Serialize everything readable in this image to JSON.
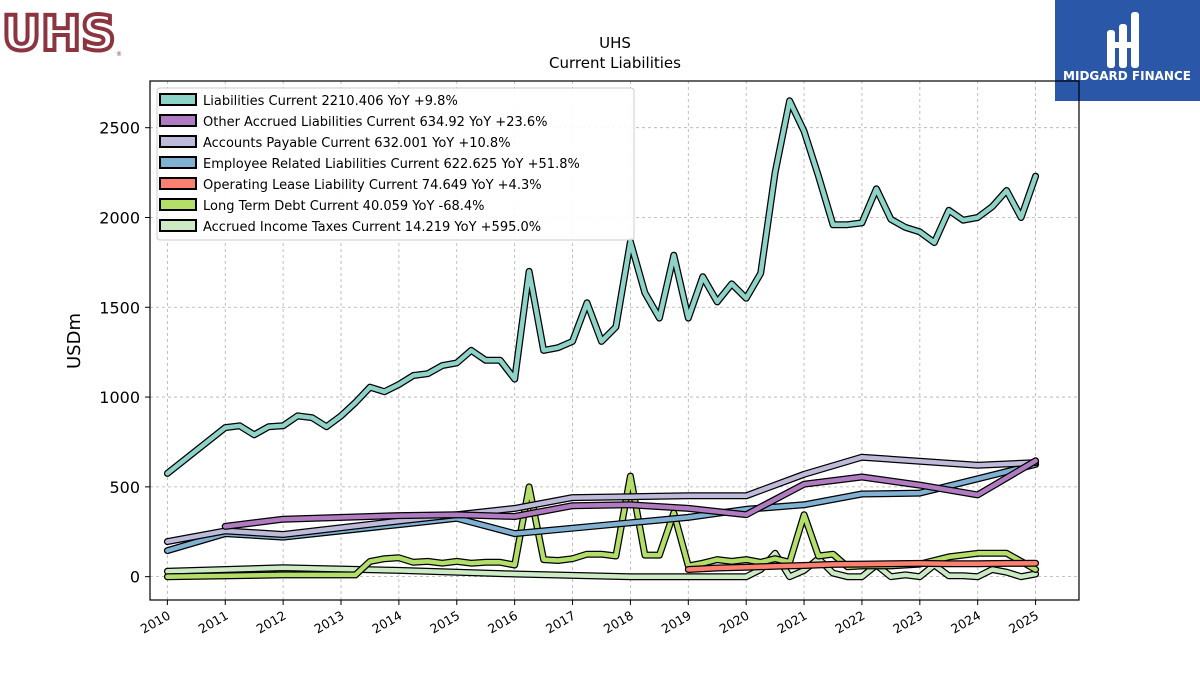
{
  "brand": {
    "left_logo_text": "UHS",
    "right_logo_text": "MIDGARD FINANCE",
    "right_logo_bg": "#2a57a8",
    "left_logo_color": "#8c3440"
  },
  "chart_data": {
    "type": "line",
    "title": "UHS",
    "subtitle": "Current  Liabilities",
    "ylabel": "USDm",
    "xlabel": "",
    "xlim": [
      2009.7,
      2025.75
    ],
    "ylim": [
      -130,
      2760
    ],
    "x_ticks": [
      2010,
      2011,
      2012,
      2013,
      2014,
      2015,
      2016,
      2017,
      2018,
      2019,
      2020,
      2021,
      2022,
      2023,
      2024,
      2025
    ],
    "y_ticks": [
      0,
      500,
      1000,
      1500,
      2000,
      2500
    ],
    "grid": true,
    "legend_position": "top-left",
    "series": [
      {
        "name": "Liabilities Current",
        "legend": "Liabilities Current  2210.406 YoY +9.8%",
        "color": "#8dd3c7",
        "x": [
          2010.0,
          2011.0,
          2011.25,
          2011.5,
          2011.75,
          2012.0,
          2012.25,
          2012.5,
          2012.75,
          2013.0,
          2013.25,
          2013.5,
          2013.75,
          2014.0,
          2014.25,
          2014.5,
          2014.75,
          2015.0,
          2015.25,
          2015.5,
          2015.75,
          2016.0,
          2016.25,
          2016.5,
          2016.75,
          2017.0,
          2017.25,
          2017.5,
          2017.75,
          2018.0,
          2018.25,
          2018.5,
          2018.75,
          2019.0,
          2019.25,
          2019.5,
          2019.75,
          2020.0,
          2020.25,
          2020.5,
          2020.75,
          2021.0,
          2021.25,
          2021.5,
          2021.75,
          2022.0,
          2022.25,
          2022.5,
          2022.75,
          2023.0,
          2023.25,
          2023.5,
          2023.75,
          2024.0,
          2024.25,
          2024.5,
          2024.75,
          2025.0
        ],
        "values": [
          575,
          830,
          840,
          790,
          835,
          840,
          895,
          885,
          835,
          895,
          970,
          1055,
          1030,
          1070,
          1120,
          1130,
          1175,
          1190,
          1260,
          1205,
          1205,
          1100,
          1700,
          1260,
          1275,
          1310,
          1525,
          1310,
          1390,
          1865,
          1580,
          1440,
          1790,
          1440,
          1670,
          1530,
          1630,
          1550,
          1690,
          2250,
          2650,
          2480,
          2230,
          1960,
          1960,
          1970,
          2160,
          1990,
          1945,
          1920,
          1860,
          2040,
          1985,
          2000,
          2060,
          2150,
          2000,
          2230
        ]
      },
      {
        "name": "Other Accrued Liabilities Current",
        "legend": "Other Accrued Liabilities Current  634.92 YoY +23.6%",
        "color": "#b07bc0",
        "x": [
          2011.0,
          2012.0,
          2014.0,
          2015.0,
          2016.0,
          2017.0,
          2018.0,
          2019.0,
          2020.0,
          2021.0,
          2022.0,
          2023.0,
          2024.0,
          2025.0
        ],
        "values": [
          280,
          320,
          340,
          345,
          335,
          395,
          400,
          380,
          345,
          515,
          555,
          510,
          455,
          645
        ]
      },
      {
        "name": "Accounts Payable Current",
        "legend": "Accounts Payable Current  632.001 YoY +10.8%",
        "color": "#bebada",
        "x": [
          2010.0,
          2011.0,
          2012.0,
          2014.0,
          2015.0,
          2016.0,
          2017.0,
          2018.0,
          2019.0,
          2020.0,
          2021.0,
          2022.0,
          2024.0,
          2025.0
        ],
        "values": [
          195,
          255,
          235,
          310,
          345,
          380,
          440,
          445,
          450,
          450,
          570,
          665,
          620,
          635
        ]
      },
      {
        "name": "Employee Related Liabilities Current",
        "legend": "Employee Related Liabilities Current  622.625 YoY +51.8%",
        "color": "#80b1d3",
        "x": [
          2010.0,
          2011.0,
          2012.0,
          2014.0,
          2015.0,
          2016.0,
          2017.0,
          2018.0,
          2019.0,
          2020.0,
          2021.0,
          2022.0,
          2023.0,
          2024.0,
          2025.0
        ],
        "values": [
          145,
          240,
          220,
          290,
          325,
          240,
          270,
          300,
          330,
          375,
          400,
          460,
          465,
          545,
          625
        ]
      },
      {
        "name": "Operating Lease Liability Current",
        "legend": "Operating Lease Liability Current  74.649 YoY +4.3%",
        "color": "#fb8072",
        "x": [
          2019.0,
          2019.5,
          2020.0,
          2020.5,
          2021.0,
          2021.5,
          2022.0,
          2022.5,
          2023.0,
          2023.5,
          2024.0,
          2024.5,
          2025.0
        ],
        "values": [
          40,
          48,
          52,
          58,
          62,
          68,
          70,
          72,
          74,
          72,
          72,
          74,
          75
        ]
      },
      {
        "name": "Long Term Debt Current",
        "legend": "Long Term Debt Current  40.059 YoY -68.4%",
        "color": "#b3de69",
        "x": [
          2010.0,
          2012.0,
          2013.25,
          2013.5,
          2013.75,
          2014.0,
          2014.25,
          2014.5,
          2014.75,
          2015.0,
          2015.25,
          2015.5,
          2015.75,
          2016.0,
          2016.25,
          2016.5,
          2016.75,
          2017.0,
          2017.25,
          2017.5,
          2017.75,
          2018.0,
          2018.25,
          2018.5,
          2018.75,
          2019.0,
          2019.25,
          2019.5,
          2019.75,
          2020.0,
          2020.25,
          2020.5,
          2020.75,
          2021.0,
          2021.25,
          2021.5,
          2021.75,
          2022.0,
          2022.5,
          2023.0,
          2023.5,
          2024.0,
          2024.5,
          2025.0
        ],
        "values": [
          0,
          10,
          10,
          85,
          100,
          105,
          80,
          85,
          75,
          85,
          75,
          80,
          80,
          65,
          500,
          95,
          90,
          100,
          125,
          125,
          115,
          560,
          120,
          120,
          355,
          60,
          75,
          95,
          85,
          95,
          80,
          100,
          80,
          345,
          115,
          125,
          55,
          60,
          60,
          70,
          110,
          130,
          130,
          40
        ]
      },
      {
        "name": "Accrued Income Taxes Current",
        "legend": "Accrued Income Taxes Current  14.219 YoY +595.0%",
        "color": "#ccebc5",
        "x": [
          2010.0,
          2012.0,
          2014.0,
          2016.0,
          2018.0,
          2019.0,
          2020.0,
          2020.25,
          2020.5,
          2020.75,
          2021.0,
          2021.25,
          2021.5,
          2021.75,
          2022.0,
          2022.25,
          2022.5,
          2022.75,
          2023.0,
          2023.25,
          2023.5,
          2023.75,
          2024.0,
          2024.25,
          2024.5,
          2024.75,
          2025.0
        ],
        "values": [
          30,
          50,
          35,
          15,
          0,
          0,
          0,
          40,
          130,
          0,
          35,
          100,
          20,
          0,
          0,
          65,
          0,
          10,
          0,
          65,
          5,
          5,
          0,
          40,
          25,
          0,
          15
        ]
      }
    ]
  }
}
